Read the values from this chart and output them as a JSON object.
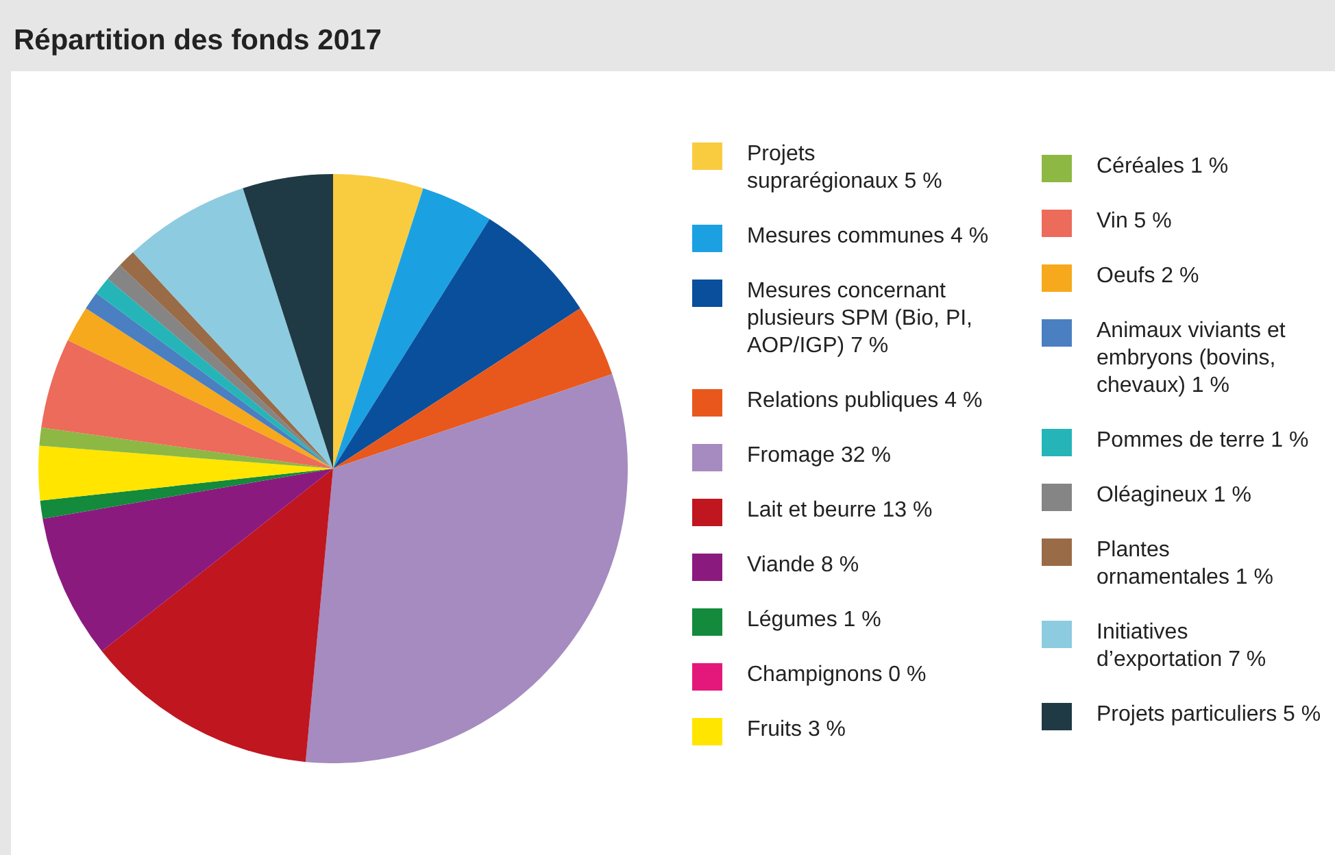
{
  "chart_data": {
    "type": "pie",
    "title": "Répartition des fonds 2017",
    "categories": [
      "Projets suprarégionaux",
      "Mesures communes",
      "Mesures concernant plusieurs SPM (Bio, PI, AOP/IGP)",
      "Relations publiques",
      "Fromage",
      "Lait et beurre",
      "Viande",
      "Légumes",
      "Champignons",
      "Fruits",
      "Céréales",
      "Vin",
      "Oeufs",
      "Animaux viviants et embryons (bovins, chevaux)",
      "Pommes de terre",
      "Oléagineux",
      "Plantes ornamentales",
      "Initiatives d’exportation",
      "Projets particuliers"
    ],
    "values": [
      5,
      4,
      7,
      4,
      32,
      13,
      8,
      1,
      0,
      3,
      1,
      5,
      2,
      1,
      1,
      1,
      1,
      7,
      5
    ],
    "value_labels": [
      "5 %",
      "4 %",
      "7 %",
      "4 %",
      "32 %",
      "13 %",
      "8 %",
      "1 %",
      "0 %",
      "3 %",
      "1 %",
      "5 %",
      "2 %",
      "1 %",
      "1 %",
      "1 %",
      "1 %",
      "7 %",
      "5 %"
    ],
    "colors": [
      "#f9cc3f",
      "#1ba1e2",
      "#0a4f9c",
      "#e8581c",
      "#a58bbf",
      "#c0161f",
      "#8b1a7f",
      "#138a3c",
      "#e4187a",
      "#ffe500",
      "#8db843",
      "#ec6b5b",
      "#f6a91c",
      "#4a7fc1",
      "#25b5b8",
      "#858585",
      "#9a6b47",
      "#8dcbe0",
      "#1f3a44"
    ],
    "legend": "right"
  }
}
